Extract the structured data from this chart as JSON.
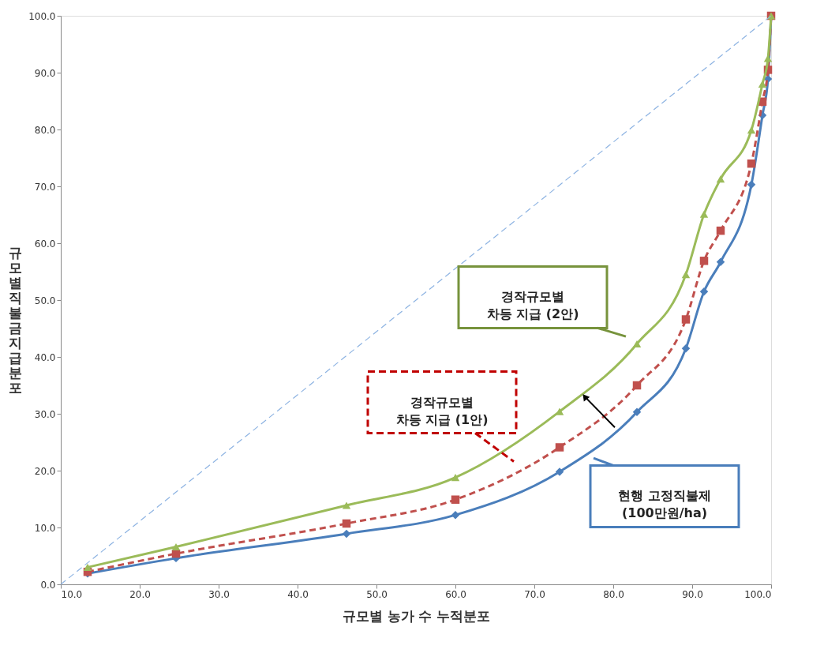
{
  "chart_data": {
    "type": "line",
    "xlabel": "규모별 농가 수 누적분포",
    "ylabel": "규모별 직불금 지급 분포",
    "xlim": [
      10,
      100
    ],
    "ylim": [
      0,
      100
    ],
    "xticks": [
      {
        "value": 10,
        "label": "10.0"
      },
      {
        "value": 20,
        "label": "20.0"
      },
      {
        "value": 30,
        "label": "30.0"
      },
      {
        "value": 40,
        "label": "40.0"
      },
      {
        "value": 50,
        "label": "50.0"
      },
      {
        "value": 60,
        "label": "60.0"
      },
      {
        "value": 70,
        "label": "70.0"
      },
      {
        "value": 80,
        "label": "80.0"
      },
      {
        "value": 90,
        "label": "90.0"
      },
      {
        "value": 100,
        "label": "100.0"
      }
    ],
    "yticks": [
      {
        "value": 0,
        "label": "0.0"
      },
      {
        "value": 10,
        "label": "10.0"
      },
      {
        "value": 20,
        "label": "20.0"
      },
      {
        "value": 30,
        "label": "30.0"
      },
      {
        "value": 40,
        "label": "40.0"
      },
      {
        "value": 50,
        "label": "50.0"
      },
      {
        "value": 60,
        "label": "60.0"
      },
      {
        "value": 70,
        "label": "70.0"
      },
      {
        "value": 80,
        "label": "80.0"
      },
      {
        "value": 90,
        "label": "90.0"
      },
      {
        "value": 100,
        "label": "100.0"
      }
    ],
    "x": [
      13.4,
      24.6,
      46.2,
      60.0,
      73.2,
      83.0,
      89.2,
      91.5,
      93.6,
      97.5,
      98.9,
      99.6,
      100
    ],
    "series": [
      {
        "color": "#4a7ebb",
        "marker": "diamond",
        "line_style": "solid",
        "values": [
          1.9,
          4.6,
          8.9,
          12.2,
          19.8,
          30.3,
          41.5,
          51.5,
          56.7,
          70.3,
          82.5,
          88.9,
          100
        ]
      },
      {
        "color": "#c0504d",
        "marker": "square",
        "line_style": "dashed",
        "values": [
          2.2,
          5.4,
          10.7,
          14.9,
          24.1,
          35.0,
          46.6,
          56.9,
          62.2,
          74.0,
          84.9,
          90.5,
          100
        ]
      },
      {
        "color": "#9bbb59",
        "marker": "triangle",
        "line_style": "solid",
        "values": [
          3.0,
          6.6,
          13.9,
          18.8,
          30.4,
          42.3,
          54.5,
          65.1,
          71.3,
          79.9,
          88.0,
          92.5,
          100
        ]
      },
      {
        "color": "#8db3e2",
        "marker": "none",
        "line_style": "dashed",
        "x": [
          10,
          100
        ],
        "values": [
          0,
          100
        ]
      }
    ],
    "annotations": [
      "경작규모별\n차등 지급 (2안)",
      "경작규모별\n차등 지급 (1안)",
      "현행 고정직불제\n(100만원/ha)"
    ],
    "grid": false
  }
}
